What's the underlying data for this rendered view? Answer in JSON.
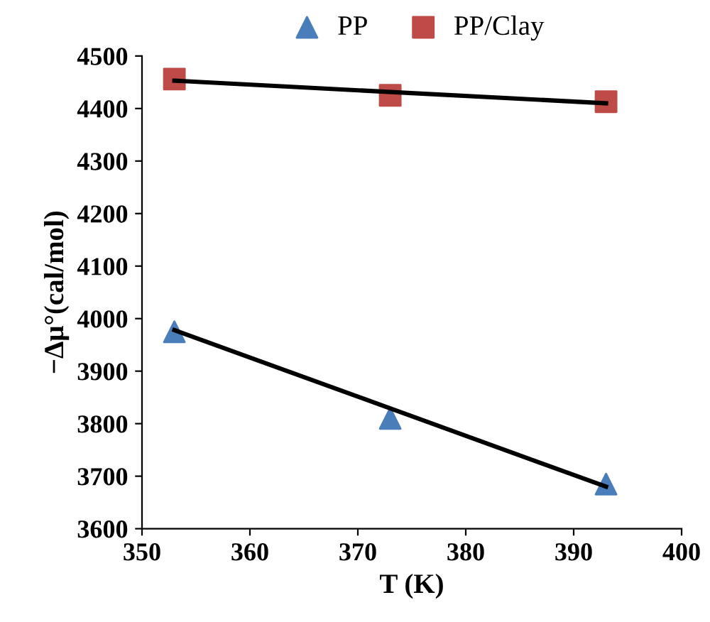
{
  "chart_data": {
    "type": "scatter",
    "xlabel": "T (K)",
    "ylabel": "−Δμ°(cal/mol)",
    "xlim": [
      350,
      400
    ],
    "xticks": [
      350,
      360,
      370,
      380,
      390,
      400
    ],
    "ylim": [
      3600,
      4500
    ],
    "yticks": [
      3600,
      3700,
      3800,
      3900,
      4000,
      4100,
      4200,
      4300,
      4400,
      4500
    ],
    "grid": false,
    "legend": "top",
    "series": [
      {
        "name": "PP",
        "marker": "triangle",
        "color": "#4a7ebb",
        "x": [
          353,
          373,
          393
        ],
        "values": [
          3975,
          3810,
          3685
        ]
      },
      {
        "name": "PP/Clay",
        "marker": "square",
        "color": "#be4b48",
        "x": [
          353,
          373,
          393
        ],
        "values": [
          4456,
          4425,
          4413
        ]
      },
      {
        "type": "line",
        "color": "#000000",
        "x": [
          353,
          393
        ],
        "values": [
          3978,
          3680
        ]
      },
      {
        "type": "line",
        "color": "#000000",
        "x": [
          353,
          393
        ],
        "values": [
          4453,
          4410
        ]
      }
    ]
  }
}
